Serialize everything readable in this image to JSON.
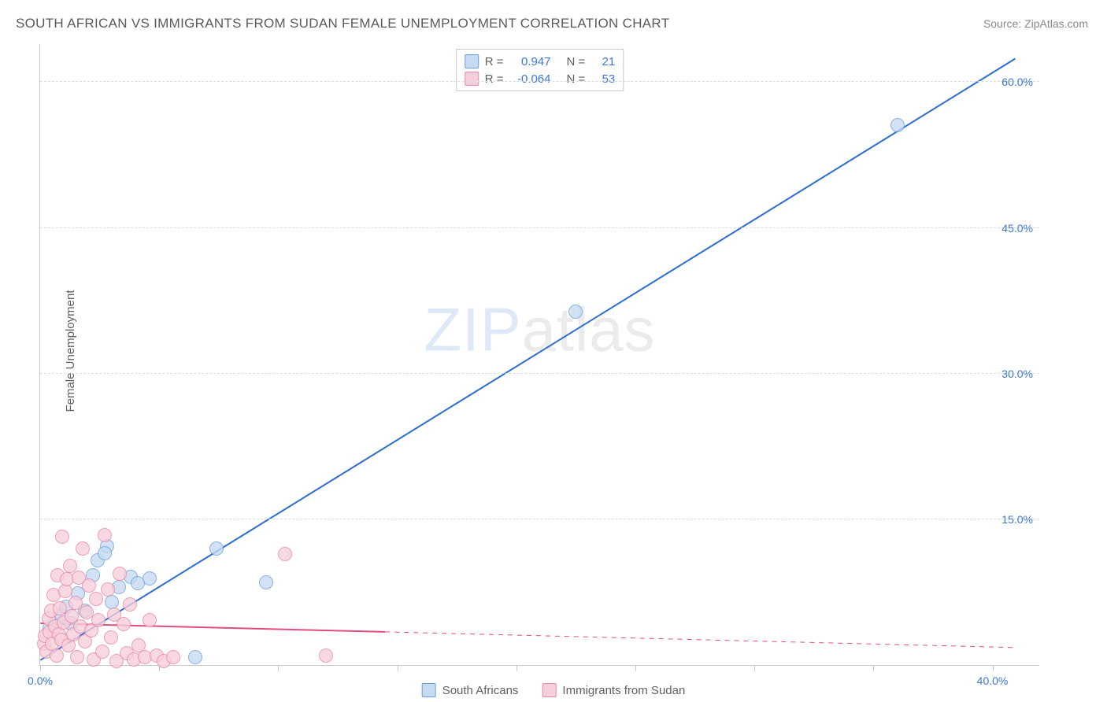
{
  "title": "SOUTH AFRICAN VS IMMIGRANTS FROM SUDAN FEMALE UNEMPLOYMENT CORRELATION CHART",
  "source": "Source: ZipAtlas.com",
  "watermark_bold": "ZIP",
  "watermark_light": "atlas",
  "ylabel": "Female Unemployment",
  "chart": {
    "type": "scatter",
    "xlim": [
      0,
      42
    ],
    "ylim": [
      0,
      64
    ],
    "x_ticks": [
      0,
      5,
      10,
      15,
      20,
      25,
      30,
      35,
      40
    ],
    "x_tick_labels": {
      "0": "0.0%",
      "40": "40.0%"
    },
    "y_ticks": [
      15,
      30,
      45,
      60
    ],
    "y_tick_labels": {
      "15": "15.0%",
      "30": "30.0%",
      "45": "45.0%",
      "60": "60.0%"
    },
    "grid_color": "#dcdcdc",
    "axis_color": "#c8c8c8",
    "background_color": "#ffffff",
    "point_radius": 9,
    "series": [
      {
        "name": "South Africans",
        "color_fill": "#c6dbf1",
        "color_stroke": "#6a9edc",
        "points": [
          [
            0.4,
            3.8
          ],
          [
            0.6,
            4.2
          ],
          [
            0.9,
            5.1
          ],
          [
            1.1,
            6.0
          ],
          [
            1.3,
            4.3
          ],
          [
            1.6,
            7.4
          ],
          [
            1.9,
            5.6
          ],
          [
            2.2,
            9.2
          ],
          [
            2.4,
            10.8
          ],
          [
            2.8,
            12.2
          ],
          [
            3.0,
            6.5
          ],
          [
            3.3,
            8.0
          ],
          [
            3.8,
            9.1
          ],
          [
            4.1,
            8.4
          ],
          [
            4.6,
            8.9
          ],
          [
            6.5,
            0.8
          ],
          [
            7.4,
            12.0
          ],
          [
            9.5,
            8.5
          ],
          [
            22.5,
            36.4
          ],
          [
            36.0,
            55.6
          ],
          [
            2.7,
            11.5
          ]
        ],
        "trend": {
          "x1": 0,
          "y1": 0.5,
          "x2": 41,
          "y2": 62.5,
          "solid_to_x": 41,
          "stroke_width": 2,
          "color": "#2d6cd2"
        }
      },
      {
        "name": "Immigrants from Sudan",
        "color_fill": "#f7cfda",
        "color_stroke": "#e985a4",
        "points": [
          [
            0.15,
            2.2
          ],
          [
            0.2,
            3.0
          ],
          [
            0.25,
            1.4
          ],
          [
            0.35,
            4.8
          ],
          [
            0.4,
            3.4
          ],
          [
            0.45,
            5.6
          ],
          [
            0.5,
            2.2
          ],
          [
            0.55,
            7.2
          ],
          [
            0.62,
            4.0
          ],
          [
            0.68,
            1.0
          ],
          [
            0.72,
            9.2
          ],
          [
            0.78,
            3.2
          ],
          [
            0.82,
            5.8
          ],
          [
            0.88,
            2.6
          ],
          [
            0.93,
            13.2
          ],
          [
            1.0,
            4.4
          ],
          [
            1.05,
            7.6
          ],
          [
            1.12,
            8.8
          ],
          [
            1.18,
            2.0
          ],
          [
            1.25,
            10.2
          ],
          [
            1.32,
            5.0
          ],
          [
            1.4,
            3.2
          ],
          [
            1.48,
            6.4
          ],
          [
            1.55,
            0.8
          ],
          [
            1.62,
            9.0
          ],
          [
            1.7,
            4.0
          ],
          [
            1.8,
            12.0
          ],
          [
            1.88,
            2.4
          ],
          [
            1.95,
            5.4
          ],
          [
            2.05,
            8.2
          ],
          [
            2.15,
            3.6
          ],
          [
            2.25,
            0.6
          ],
          [
            2.35,
            6.8
          ],
          [
            2.45,
            4.6
          ],
          [
            2.6,
            1.4
          ],
          [
            2.72,
            13.4
          ],
          [
            2.85,
            7.8
          ],
          [
            2.98,
            2.8
          ],
          [
            3.1,
            5.2
          ],
          [
            3.22,
            0.4
          ],
          [
            3.35,
            9.4
          ],
          [
            3.5,
            4.2
          ],
          [
            3.65,
            1.2
          ],
          [
            3.78,
            6.2
          ],
          [
            3.95,
            0.6
          ],
          [
            4.15,
            2.0
          ],
          [
            4.4,
            0.8
          ],
          [
            4.6,
            4.6
          ],
          [
            4.9,
            1.0
          ],
          [
            5.2,
            0.4
          ],
          [
            5.6,
            0.8
          ],
          [
            10.3,
            11.4
          ],
          [
            12.0,
            1.0
          ]
        ],
        "trend": {
          "x1": 0,
          "y1": 4.3,
          "x2": 41,
          "y2": 1.8,
          "solid_to_x": 14.5,
          "stroke_width": 2,
          "color": "#e34d7b"
        }
      }
    ]
  },
  "legend_top": [
    {
      "swatch_fill": "#c6dbf1",
      "swatch_stroke": "#6a9edc",
      "r_label": "R =",
      "r_value": "0.947",
      "n_label": "N =",
      "n_value": "21"
    },
    {
      "swatch_fill": "#f7cfda",
      "swatch_stroke": "#e985a4",
      "r_label": "R =",
      "r_value": "-0.064",
      "n_label": "N =",
      "n_value": "53"
    }
  ],
  "legend_bottom": [
    {
      "swatch_fill": "#c6dbf1",
      "swatch_stroke": "#6a9edc",
      "label": "South Africans"
    },
    {
      "swatch_fill": "#f7cfda",
      "swatch_stroke": "#e985a4",
      "label": "Immigrants from Sudan"
    }
  ]
}
